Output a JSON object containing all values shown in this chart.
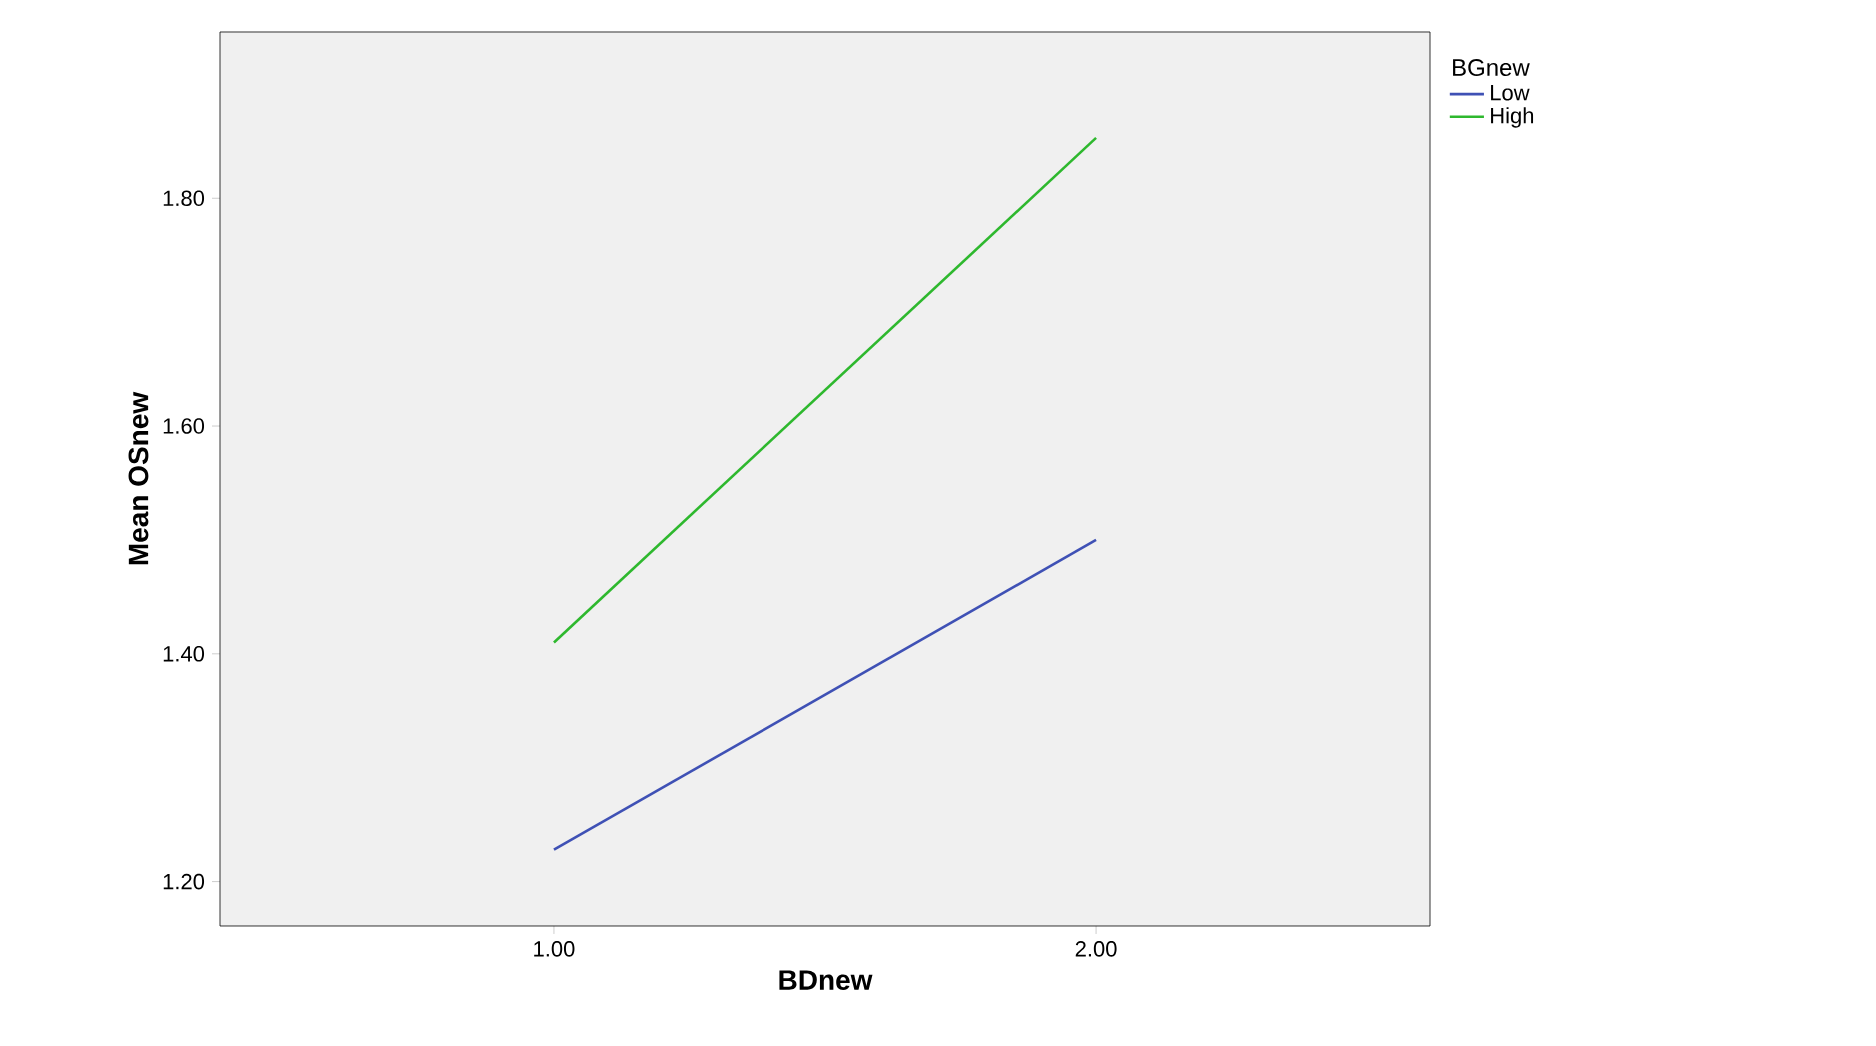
{
  "chart_data": {
    "type": "line",
    "xlabel": "BDnew",
    "ylabel": "Mean OSnew",
    "legend_title": "BGnew",
    "x": [
      1,
      2
    ],
    "series": [
      {
        "name": "Low",
        "color": "#3f51b5",
        "values": [
          1.228,
          1.5
        ]
      },
      {
        "name": "High",
        "color": "#2eb82e",
        "values": [
          1.41,
          1.853
        ]
      }
    ],
    "xlim": [
      0.384,
      2.616
    ],
    "ylim": [
      1.161,
      1.946
    ],
    "xticks": [
      {
        "value": 1,
        "label": "1.00"
      },
      {
        "value": 2,
        "label": "2.00"
      }
    ],
    "yticks": [
      {
        "value": 1.2,
        "label": "1.20"
      },
      {
        "value": 1.4,
        "label": "1.40"
      },
      {
        "value": 1.6,
        "label": "1.60"
      },
      {
        "value": 1.8,
        "label": "1.80"
      }
    ],
    "grid": false,
    "legend": "top right",
    "marker": "none",
    "line_style": "solid"
  }
}
